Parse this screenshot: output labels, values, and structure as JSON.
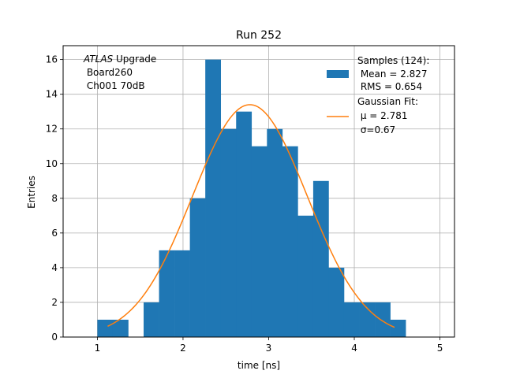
{
  "chart_data": {
    "type": "bar",
    "title": "Run 252",
    "xlabel": "time [ns]",
    "ylabel": "Entries",
    "xlim": [
      0.6,
      5.17
    ],
    "ylim": [
      0,
      16.8
    ],
    "xticks": [
      1,
      2,
      3,
      4,
      5
    ],
    "yticks": [
      0,
      2,
      4,
      6,
      8,
      10,
      12,
      14,
      16
    ],
    "grid": true,
    "bin_width": 0.18,
    "bins": [
      {
        "x0": 1.0,
        "count": 1
      },
      {
        "x0": 1.18,
        "count": 1
      },
      {
        "x0": 1.54,
        "count": 2
      },
      {
        "x0": 1.72,
        "count": 5
      },
      {
        "x0": 1.9,
        "count": 5
      },
      {
        "x0": 2.08,
        "count": 8
      },
      {
        "x0": 2.26,
        "count": 16
      },
      {
        "x0": 2.44,
        "count": 12
      },
      {
        "x0": 2.62,
        "count": 13
      },
      {
        "x0": 2.8,
        "count": 11
      },
      {
        "x0": 2.98,
        "count": 12
      },
      {
        "x0": 3.16,
        "count": 11
      },
      {
        "x0": 3.34,
        "count": 7
      },
      {
        "x0": 3.52,
        "count": 9
      },
      {
        "x0": 3.7,
        "count": 4
      },
      {
        "x0": 3.88,
        "count": 2
      },
      {
        "x0": 4.06,
        "count": 2
      },
      {
        "x0": 4.24,
        "count": 2
      },
      {
        "x0": 4.42,
        "count": 1
      }
    ],
    "fit": {
      "amplitude": 13.4,
      "mu": 2.781,
      "sigma": 0.67,
      "x_range": [
        1.12,
        4.47
      ]
    },
    "legend": {
      "placement": "top-right",
      "samples": [
        "Samples (124):",
        " Mean = 2.827",
        " RMS = 0.654"
      ],
      "fit": [
        "Gaussian Fit:",
        " μ = 2.781",
        " σ=0.67"
      ]
    },
    "annotation": {
      "lines": [
        "ATLAS Upgrade",
        " Board260",
        " Ch001 70dB"
      ]
    },
    "colors": {
      "bars": "#1f77b4",
      "fit": "#ff7f0e",
      "grid": "#b0b0b0"
    }
  }
}
